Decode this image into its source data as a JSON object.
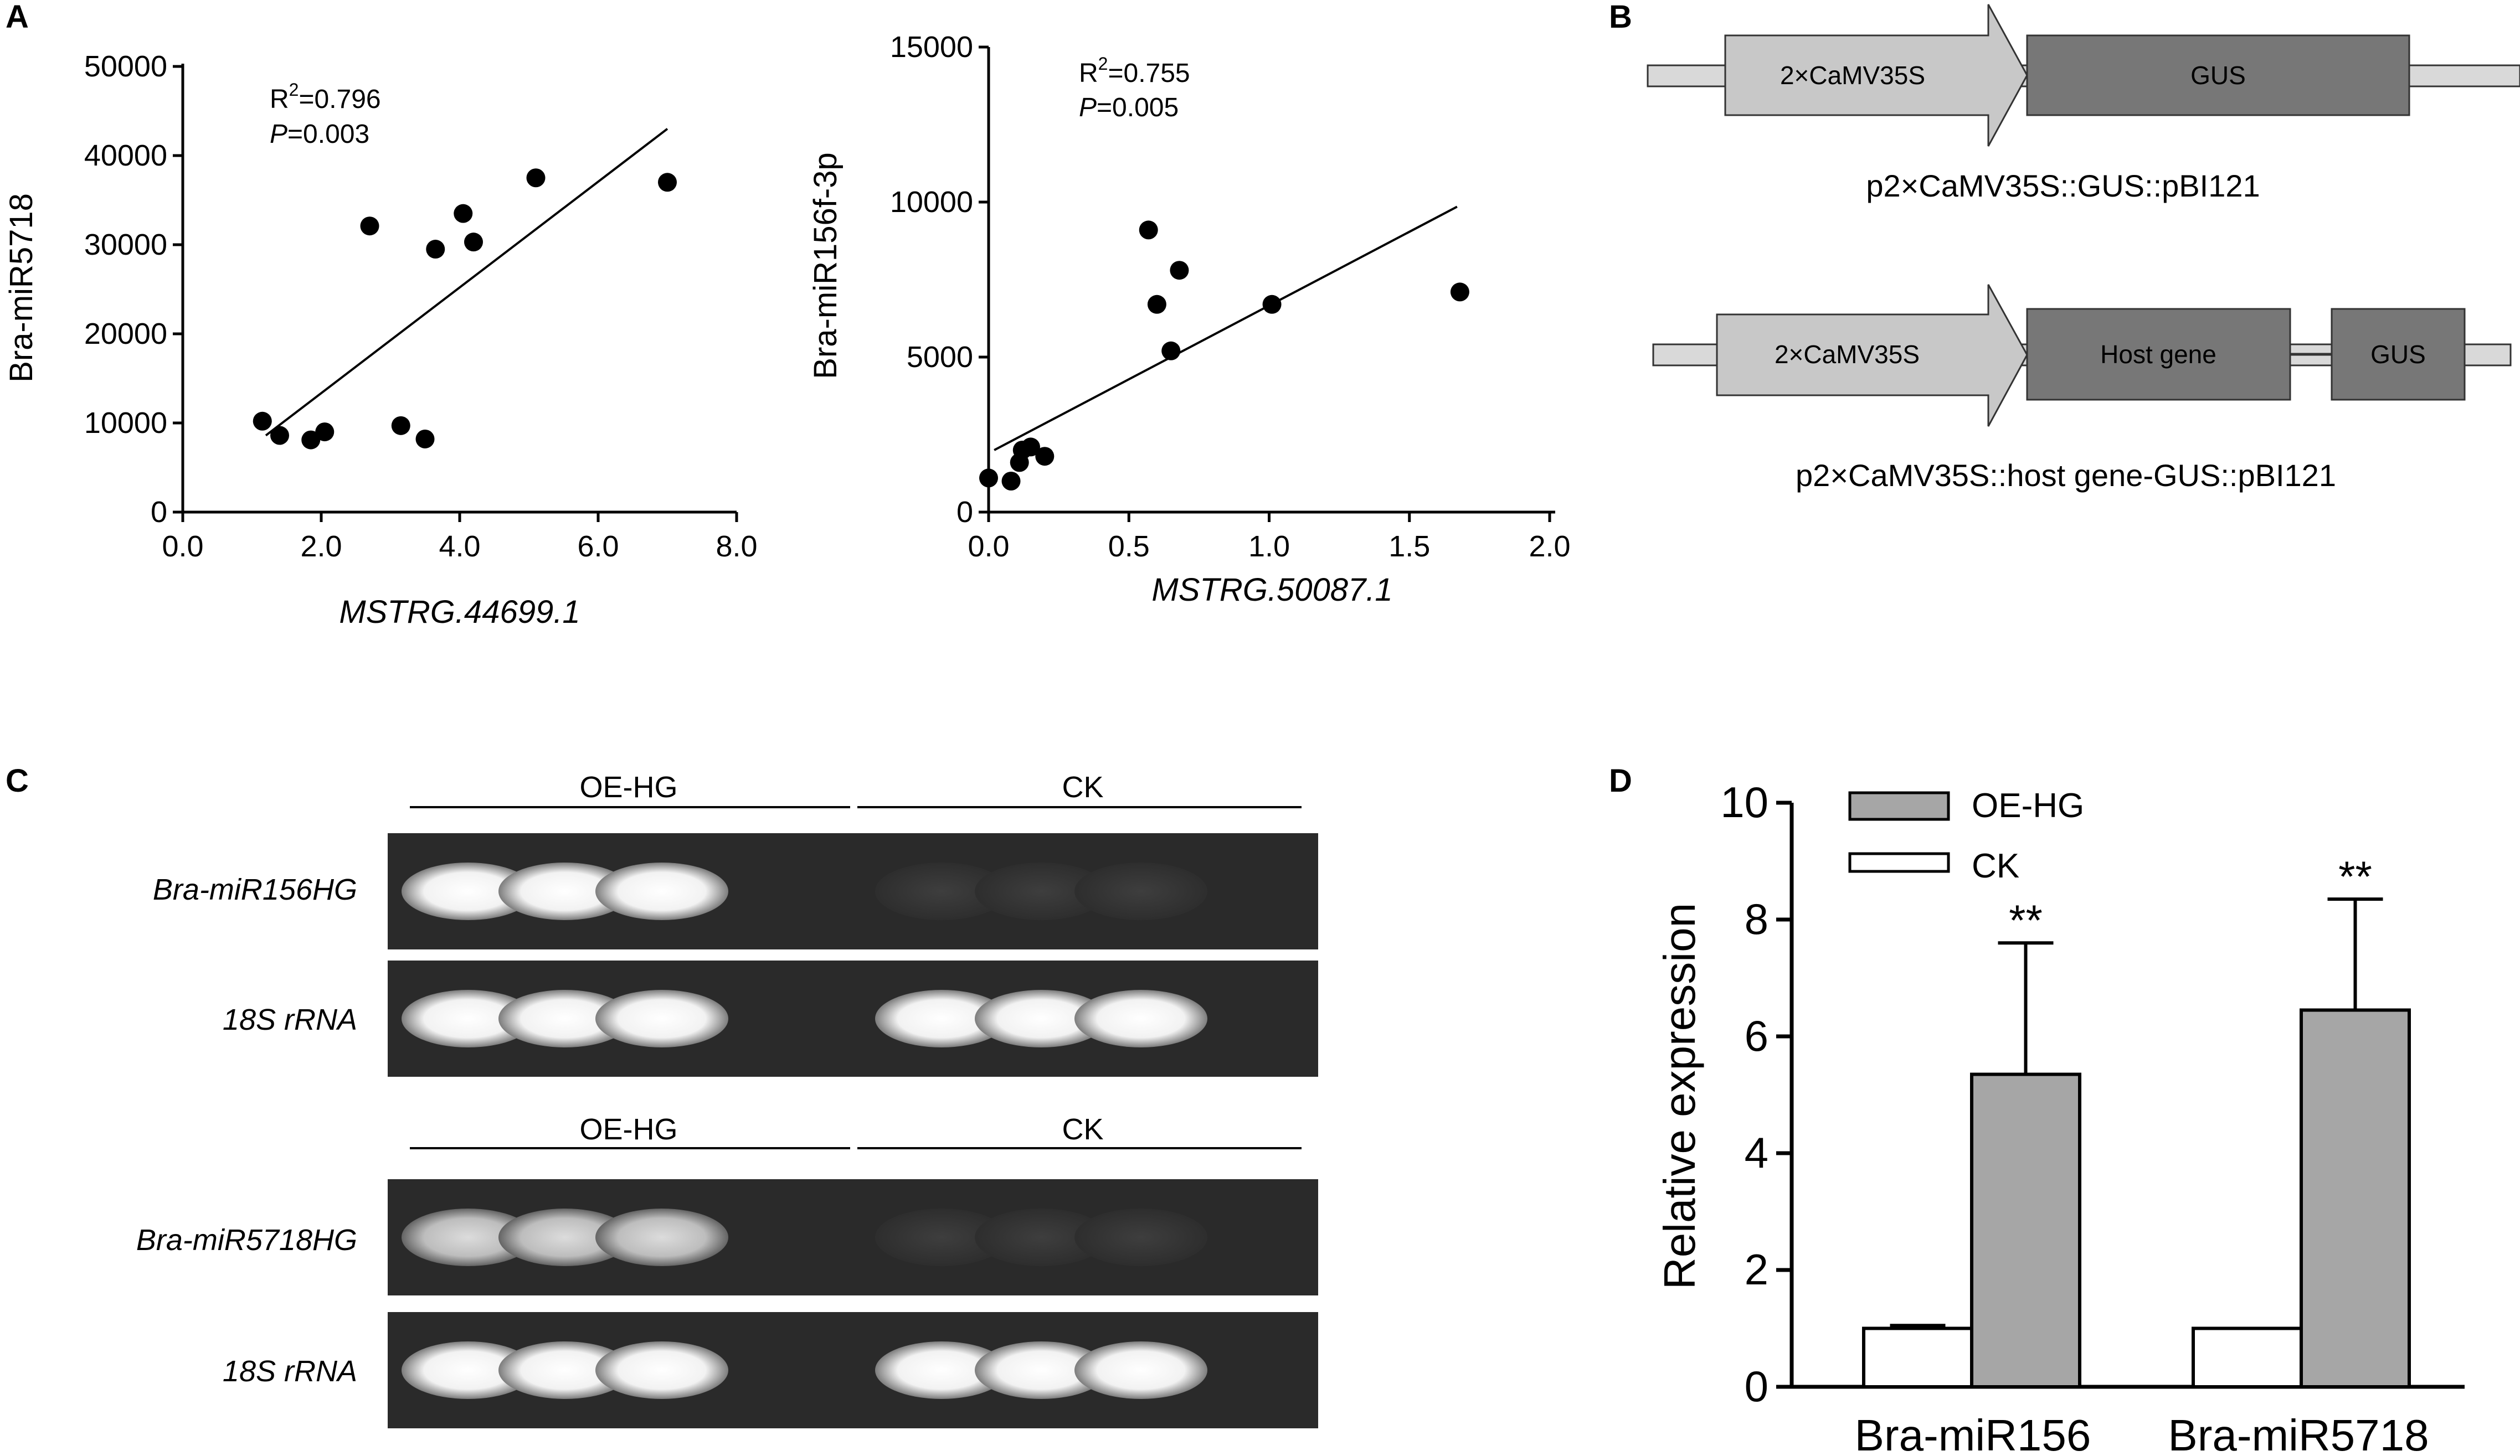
{
  "panels": {
    "A": "A",
    "B": "B",
    "C": "C",
    "D": "D"
  },
  "chart_data": [
    {
      "id": "scatter1",
      "type": "scatter",
      "xlabel": "MSTRG.44699.1",
      "ylabel": "Bra-miR5718",
      "xlim": [
        0,
        8
      ],
      "ylim": [
        0,
        50000
      ],
      "x_ticks": [
        "0.0",
        "2.0",
        "4.0",
        "6.0",
        "8.0"
      ],
      "y_ticks": [
        "0",
        "10000",
        "20000",
        "30000",
        "40000",
        "50000"
      ],
      "r2_label": "R",
      "r2_sup": "2",
      "r2_value": "=0.796",
      "p_label": "P",
      "p_value": "=0.003",
      "points": [
        {
          "x": 1.15,
          "y": 10200
        },
        {
          "x": 1.4,
          "y": 8600
        },
        {
          "x": 1.85,
          "y": 8100
        },
        {
          "x": 2.05,
          "y": 9000
        },
        {
          "x": 2.7,
          "y": 32100
        },
        {
          "x": 3.15,
          "y": 9700
        },
        {
          "x": 3.5,
          "y": 8200
        },
        {
          "x": 3.65,
          "y": 29500
        },
        {
          "x": 4.05,
          "y": 33500
        },
        {
          "x": 4.2,
          "y": 30300
        },
        {
          "x": 5.1,
          "y": 37500
        },
        {
          "x": 7.0,
          "y": 37000
        }
      ],
      "fit": {
        "x0": 1.2,
        "y0": 8600,
        "x1": 7.0,
        "y1": 43000
      }
    },
    {
      "id": "scatter2",
      "type": "scatter",
      "xlabel": "MSTRG.50087.1",
      "ylabel": "Bra-miR156f-3p",
      "xlim": [
        0,
        2
      ],
      "ylim": [
        0,
        15000
      ],
      "x_ticks": [
        "0.0",
        "0.5",
        "1.0",
        "1.5",
        "2.0"
      ],
      "y_ticks": [
        "0",
        "5000",
        "10000",
        "15000"
      ],
      "r2_label": "R",
      "r2_sup": "2",
      "r2_value": "=0.755",
      "p_label": "P",
      "p_value": "=0.005",
      "points": [
        {
          "x": 0.0,
          "y": 1100
        },
        {
          "x": 0.08,
          "y": 1000
        },
        {
          "x": 0.11,
          "y": 1600
        },
        {
          "x": 0.12,
          "y": 2000
        },
        {
          "x": 0.15,
          "y": 2100
        },
        {
          "x": 0.2,
          "y": 1800
        },
        {
          "x": 0.57,
          "y": 9100
        },
        {
          "x": 0.6,
          "y": 6700
        },
        {
          "x": 0.65,
          "y": 5200
        },
        {
          "x": 0.68,
          "y": 7800
        },
        {
          "x": 1.01,
          "y": 6700
        },
        {
          "x": 1.68,
          "y": 7100
        }
      ],
      "fit": {
        "x0": 0.02,
        "y0": 2000,
        "x1": 1.67,
        "y1": 9850
      }
    },
    {
      "id": "bar",
      "type": "bar",
      "ylabel": "Relative expression",
      "ylim": [
        0,
        10
      ],
      "y_ticks": [
        "0",
        "2",
        "4",
        "6",
        "8",
        "10"
      ],
      "categories": [
        "Bra-miR156",
        "Bra-miR5718"
      ],
      "series": [
        {
          "name": "CK",
          "color": "#ffffff",
          "values": [
            1.0,
            1.0
          ],
          "errors": [
            0.05,
            0.0
          ]
        },
        {
          "name": "OE-HG",
          "color": "#a6a6a6",
          "values": [
            5.35,
            6.45
          ],
          "errors": [
            2.25,
            1.9
          ]
        }
      ],
      "significance": [
        "**",
        "**"
      ]
    }
  ],
  "constructs": {
    "top": {
      "promoter": "2×CaMV35S",
      "reporter": "GUS",
      "label": "p2×CaMV35S::GUS::pBI121"
    },
    "bottom": {
      "promoter": "2×CaMV35S",
      "host": "Host gene",
      "reporter": "GUS",
      "label": "p2×CaMV35S::host gene-GUS::pBI121"
    }
  },
  "gel": {
    "groups": [
      "OE-HG",
      "CK"
    ],
    "block1_rows": [
      "Bra-miR156HG",
      "18S rRNA"
    ],
    "block2_rows": [
      "Bra-miR5718HG",
      "18S rRNA"
    ]
  },
  "colors": {
    "arrow_fill": "#c8c8c8",
    "box_fill": "#777777",
    "backbone": "#d9d9d9",
    "gel_bg": "#2a2a2a",
    "bar_grey": "#a6a6a6"
  }
}
